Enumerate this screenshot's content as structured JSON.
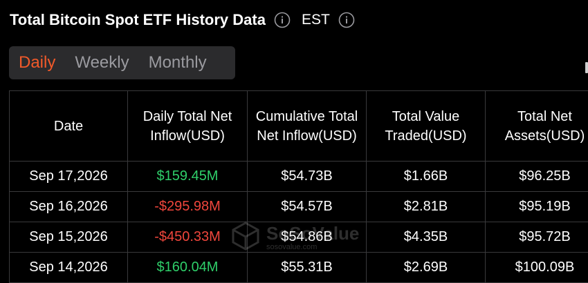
{
  "header": {
    "title": "Total Bitcoin Spot ETF History Data",
    "timezone": "EST"
  },
  "tabs": [
    {
      "label": "Daily",
      "active": true
    },
    {
      "label": "Weekly",
      "active": false
    },
    {
      "label": "Monthly",
      "active": false
    }
  ],
  "table": {
    "columns": [
      "Date",
      "Daily Total Net Inflow(USD)",
      "Cumulative Total Net Inflow(USD)",
      "Total Value Traded(USD)",
      "Total Net Assets(USD)"
    ],
    "rows": [
      {
        "date": "Sep 17,2026",
        "daily_net_inflow": "$159.45M",
        "cumulative_net_inflow": "$54.73B",
        "value_traded": "$1.66B",
        "net_assets": "$96.25B"
      },
      {
        "date": "Sep 16,2026",
        "daily_net_inflow": "-$295.98M",
        "cumulative_net_inflow": "$54.57B",
        "value_traded": "$2.81B",
        "net_assets": "$95.19B"
      },
      {
        "date": "Sep 15,2026",
        "daily_net_inflow": "-$450.33M",
        "cumulative_net_inflow": "$54.86B",
        "value_traded": "$4.35B",
        "net_assets": "$95.72B"
      },
      {
        "date": "Sep 14,2026",
        "daily_net_inflow": "$160.04M",
        "cumulative_net_inflow": "$55.31B",
        "value_traded": "$2.69B",
        "net_assets": "$100.09B"
      }
    ]
  },
  "watermark": {
    "name": "SoSoValue",
    "url": "sosovalue.com"
  },
  "colors": {
    "background": "#000000",
    "accent": "#f25a2a",
    "positive": "#2fcf6a",
    "negative": "#f0463c",
    "tab_bg": "#2b2b2d",
    "border": "#3a3a3c"
  },
  "icons": {
    "title_info": "info-icon",
    "timezone_info": "info-icon",
    "watermark_logo": "cube-logo-icon"
  }
}
